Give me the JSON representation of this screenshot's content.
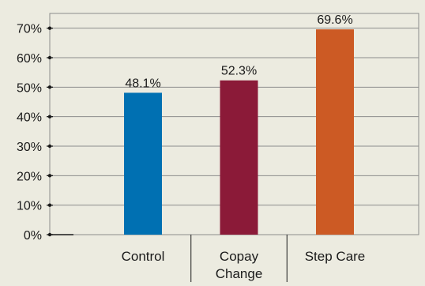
{
  "chart_data": {
    "type": "bar",
    "categories": [
      "Control",
      "Copay|Change",
      "Step Care"
    ],
    "values": [
      48.1,
      52.3,
      69.6
    ],
    "data_labels": [
      "48.1%",
      "52.3%",
      "69.6%"
    ],
    "colors": [
      "#0070b2",
      "#8b1a38",
      "#cc5a24"
    ],
    "ylim": [
      0,
      75
    ],
    "yticks": [
      {
        "value": 0,
        "label": "0%"
      },
      {
        "value": 10,
        "label": "10%"
      },
      {
        "value": 20,
        "label": "20%"
      },
      {
        "value": 30,
        "label": "30%"
      },
      {
        "value": 40,
        "label": "40%"
      },
      {
        "value": 50,
        "label": "50%"
      },
      {
        "value": 60,
        "label": "60%"
      },
      {
        "value": 70,
        "label": "70%"
      }
    ],
    "grid": true,
    "legend": "none",
    "title": "",
    "xlabel": "",
    "ylabel": ""
  }
}
